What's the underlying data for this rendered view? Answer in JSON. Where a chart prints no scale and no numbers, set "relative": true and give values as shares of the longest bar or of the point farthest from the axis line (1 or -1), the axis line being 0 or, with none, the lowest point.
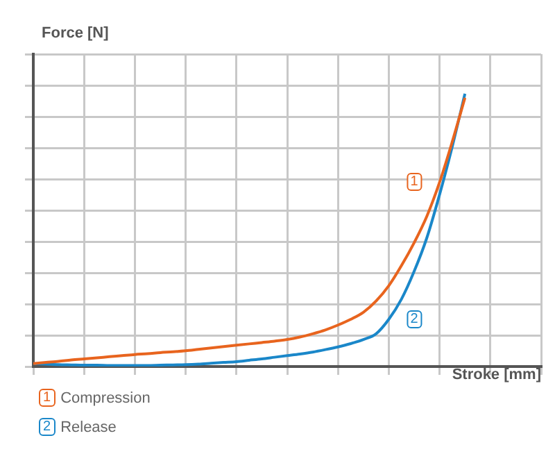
{
  "chart_data": {
    "type": "line",
    "relative": true,
    "xlabel": "Stroke [mm]",
    "ylabel": "Force [N]",
    "grid": true,
    "legend": "bottom",
    "marker": "none",
    "line_style": "solid",
    "categories": [
      null,
      null,
      null,
      null,
      null,
      null,
      null,
      null,
      null,
      null,
      null,
      null,
      null,
      null,
      null,
      null,
      null,
      null,
      null,
      null,
      null,
      null,
      null,
      null,
      null,
      null,
      null,
      null,
      null,
      null,
      null,
      null,
      null,
      null,
      null,
      null,
      null,
      null,
      null,
      null,
      null
    ],
    "annotations": [
      "1",
      "2"
    ],
    "series": [
      {
        "name": "Compression",
        "color": "#e8641e",
        "values": [
          0.011,
          0.015,
          0.019,
          0.024,
          0.028,
          0.032,
          0.036,
          0.04,
          0.044,
          0.047,
          0.051,
          0.054,
          0.058,
          0.063,
          0.068,
          0.073,
          0.078,
          0.083,
          0.088,
          0.093,
          0.099,
          0.108,
          0.12,
          0.134,
          0.152,
          0.173,
          0.199,
          0.24,
          0.296,
          0.37,
          0.454,
          0.551,
          0.675,
          0.824,
          0.985,
          null,
          null,
          null,
          null,
          null,
          null
        ]
      },
      {
        "name": "Release",
        "color": "#1a87c9",
        "values": [
          0.011,
          0.009,
          0.007,
          0.006,
          0.005,
          0.005,
          0.004,
          0.004,
          0.004,
          0.004,
          0.005,
          0.006,
          0.007,
          0.009,
          0.012,
          0.015,
          0.018,
          0.023,
          0.028,
          0.034,
          0.04,
          0.046,
          0.053,
          0.062,
          0.072,
          0.084,
          0.099,
          0.12,
          0.173,
          0.247,
          0.349,
          0.472,
          0.63,
          0.806,
          1,
          null,
          null,
          null,
          null,
          null,
          null
        ]
      }
    ]
  }
}
